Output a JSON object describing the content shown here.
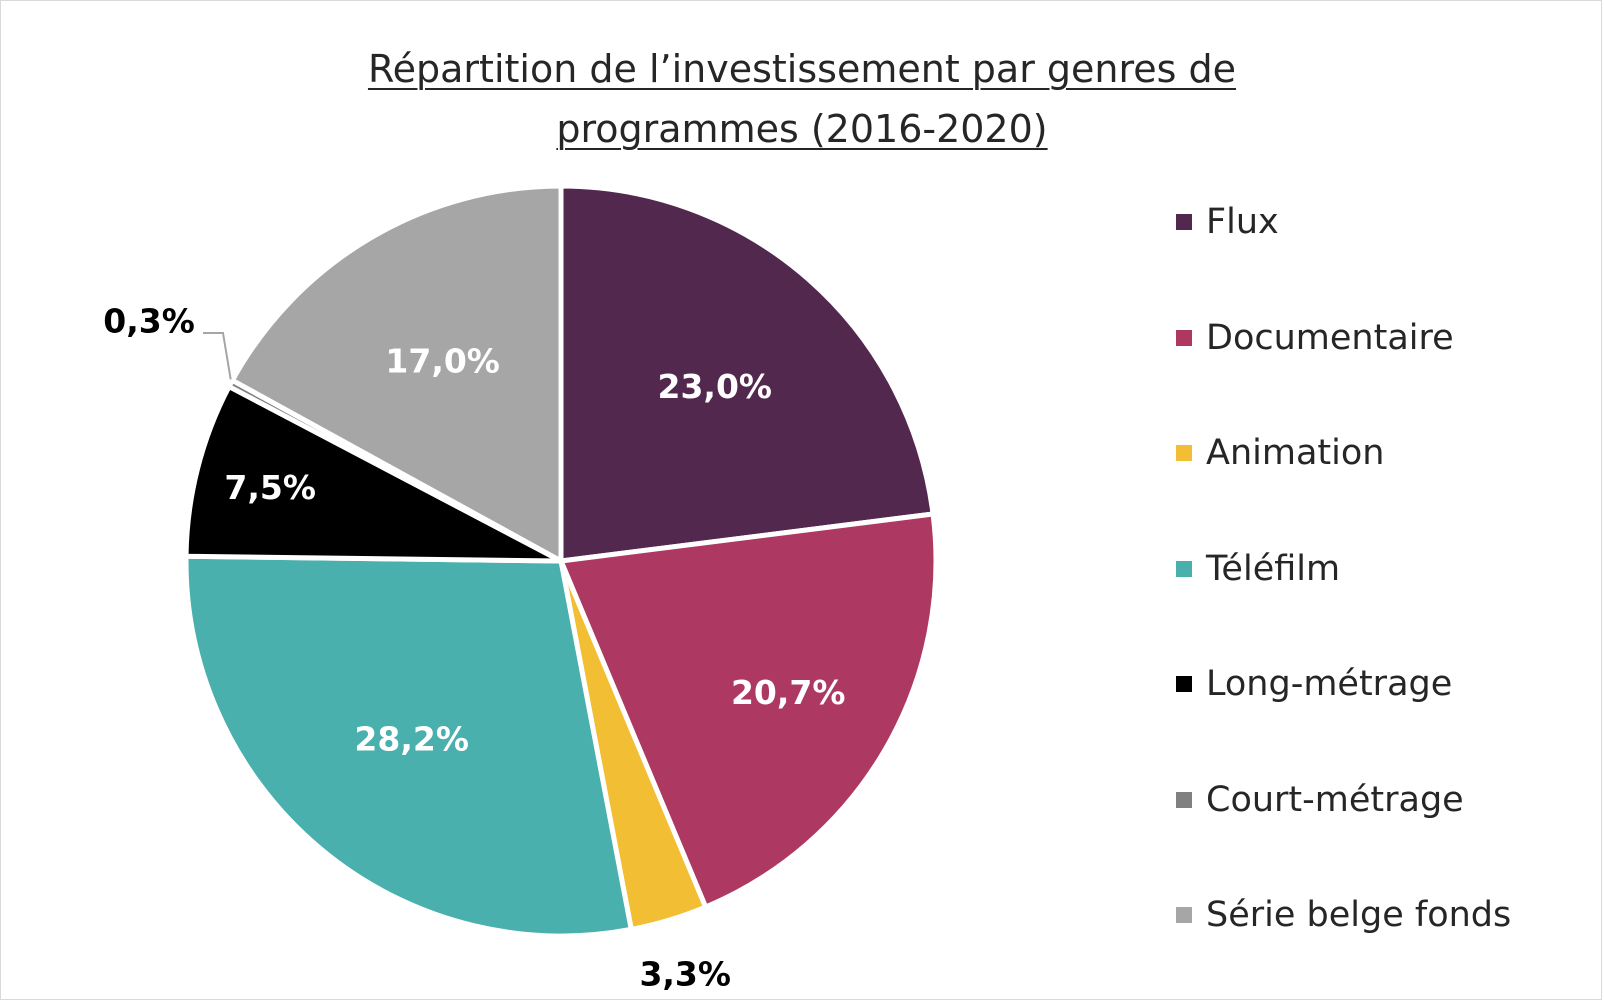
{
  "title_lines": [
    "Répartition de l’investissement par genres de",
    "programmes (2016-2020)"
  ],
  "chart_data": {
    "type": "pie",
    "title": "Répartition de l’investissement par genres de programmes (2016-2020)",
    "legend_position": "right",
    "start": "top",
    "direction": "clockwise",
    "series": [
      {
        "categories": [
          "Flux",
          "Documentaire",
          "Animation",
          "Téléfilm",
          "Long-métrage",
          "Court-métrage",
          "Série belge fonds"
        ],
        "values": [
          23.0,
          20.7,
          3.3,
          28.2,
          7.5,
          0.3,
          17.0
        ],
        "labels": [
          "23,0%",
          "20,7%",
          "3,3%",
          "28,2%",
          "7,5%",
          "0,3%",
          "17,0%"
        ],
        "colors": [
          "#52284e",
          "#ad3963",
          "#f2be33",
          "#49b0ad",
          "#000000",
          "#808080",
          "#a6a6a6"
        ],
        "label_colors": [
          "#ffffff",
          "#ffffff",
          "#000000",
          "#ffffff",
          "#ffffff",
          "#000000",
          "#ffffff"
        ]
      }
    ]
  }
}
